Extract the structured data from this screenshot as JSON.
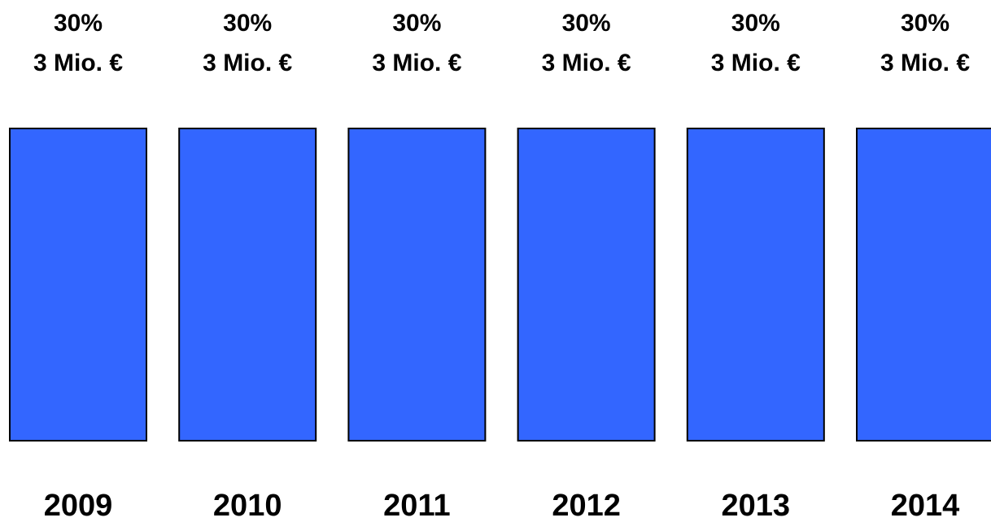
{
  "chart_data": {
    "type": "bar",
    "categories": [
      "2009",
      "2010",
      "2011",
      "2012",
      "2013",
      "2014"
    ],
    "values": [
      30,
      30,
      30,
      30,
      30,
      30
    ],
    "value_labels": [
      "30%",
      "30%",
      "30%",
      "30%",
      "30%",
      "30%"
    ],
    "amounts": [
      3,
      3,
      3,
      3,
      3,
      3
    ],
    "amount_labels": [
      "3 Mio. €",
      "3 Mio. €",
      "3 Mio. €",
      "3 Mio. €",
      "3 Mio. €",
      "3 Mio. €"
    ],
    "color": "#3366ff"
  }
}
